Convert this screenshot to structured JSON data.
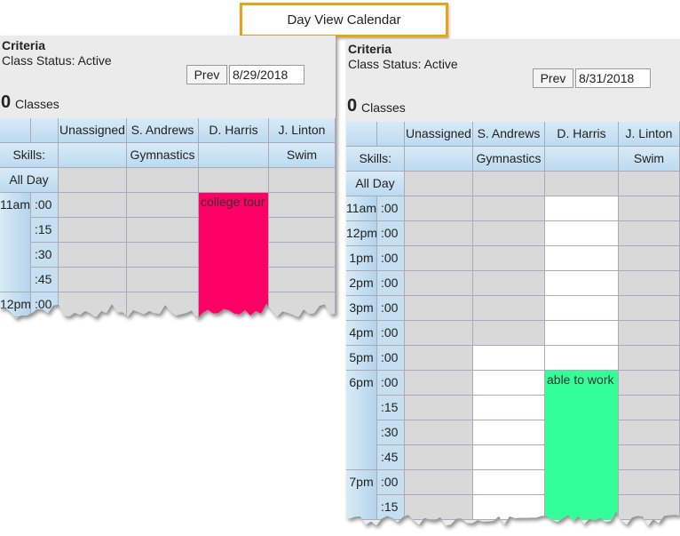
{
  "header": {
    "title": "Day View Calendar"
  },
  "panels": [
    {
      "criteria": "Criteria",
      "status": "Class Status: Active",
      "prev": "Prev",
      "date": "8/29/2018",
      "count": 0,
      "count_label": "Classes",
      "skills_label": "Skills:",
      "all_day": "All Day",
      "columns": [
        {
          "name": "Unassigned"
        },
        {
          "name": "S. Andrews",
          "skill": "Gymnastics"
        },
        {
          "name": "D. Harris",
          "event": "college tour"
        },
        {
          "name": "J. Linton",
          "skill": "Swim"
        }
      ],
      "rows": [
        {
          "hour": "11am",
          "minute": ":00"
        },
        {
          "minute": ":15"
        },
        {
          "minute": ":30"
        },
        {
          "minute": ":45"
        },
        {
          "hour": "12pm",
          "minute": ":00"
        }
      ]
    },
    {
      "criteria": "Criteria",
      "status": "Class Status: Active",
      "prev": "Prev",
      "date": "8/31/2018",
      "count": 0,
      "count_label": "Classes",
      "skills_label": "Skills:",
      "all_day": "All Day",
      "columns": [
        {
          "name": "Unassigned"
        },
        {
          "name": "S. Andrews",
          "skill": "Gymnastics"
        },
        {
          "name": "D. Harris",
          "event": "able to work"
        },
        {
          "name": "J. Linton",
          "skill": "Swim"
        }
      ],
      "rows": [
        {
          "hour": "11am",
          "minute": ":00"
        },
        {
          "hour": "12pm",
          "minute": ":00"
        },
        {
          "hour": "1pm",
          "minute": ":00"
        },
        {
          "hour": "2pm",
          "minute": ":00"
        },
        {
          "hour": "3pm",
          "minute": ":00"
        },
        {
          "hour": "4pm",
          "minute": ":00"
        },
        {
          "hour": "5pm",
          "minute": ":00"
        },
        {
          "hour": "6pm",
          "minute": ":00"
        },
        {
          "minute": ":15"
        },
        {
          "minute": ":30"
        },
        {
          "minute": ":45"
        },
        {
          "hour": "7pm",
          "minute": ":00"
        },
        {
          "minute": ":15"
        }
      ]
    }
  ]
}
